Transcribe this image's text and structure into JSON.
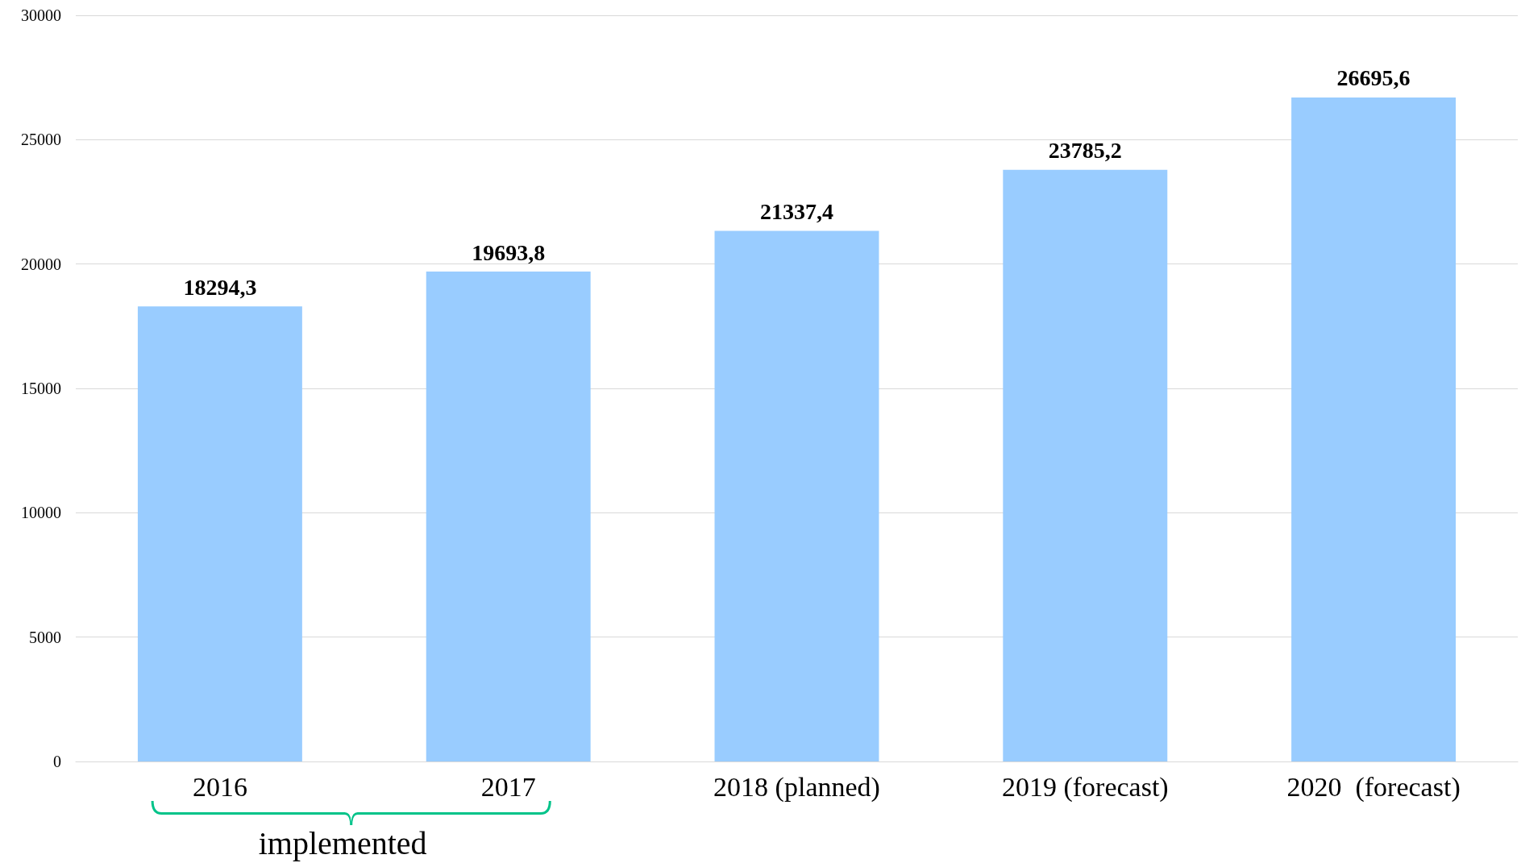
{
  "chart_data": {
    "type": "bar",
    "categories": [
      "2016",
      "2017",
      "2018 (planned)",
      "2019 (forecast)",
      "2020  (forecast)"
    ],
    "values": [
      18294.3,
      19693.8,
      21337.4,
      23785.2,
      26695.6
    ],
    "value_labels": [
      "18294,3",
      "19693,8",
      "21337,4",
      "23785,2",
      "26695,6"
    ],
    "color": "#99ccff",
    "ylim": [
      0,
      30000
    ],
    "yticks": [
      0,
      5000,
      10000,
      15000,
      20000,
      25000,
      30000
    ],
    "grid": "y",
    "annotations": [
      "implemented"
    ]
  }
}
